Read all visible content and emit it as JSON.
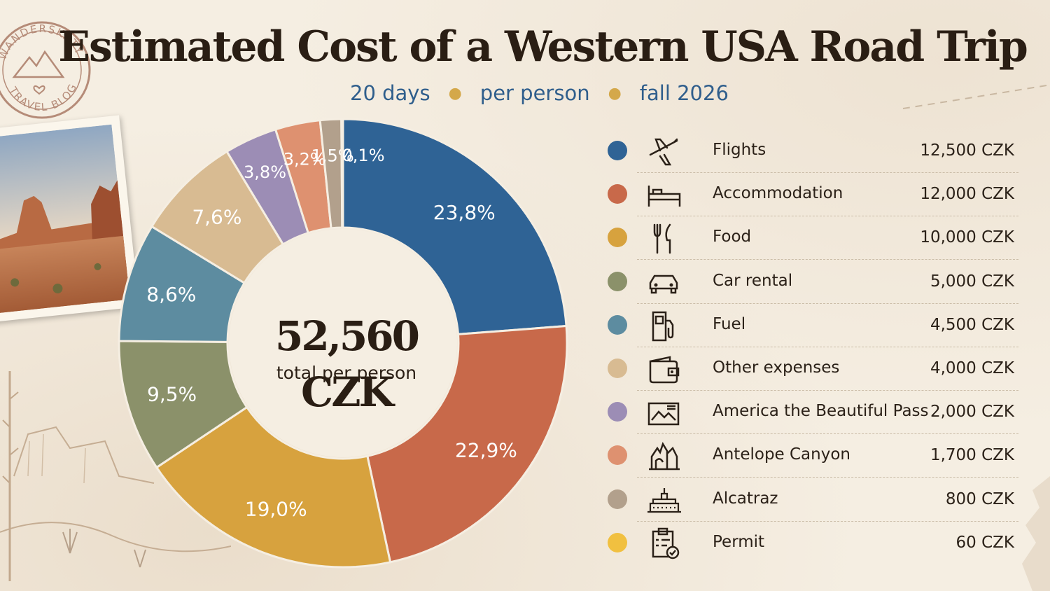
{
  "title": "Estimated Cost of a Western USA Road Trip",
  "subtitle": {
    "parts": [
      "20 days",
      "per person",
      "fall 2026"
    ]
  },
  "stamp": {
    "text": "WANDERSKATY TRAVEL BLOG"
  },
  "center": {
    "total": "52,560 CZK",
    "label": "total per person"
  },
  "colors": {
    "accent_blue": "#2f5e8c",
    "dot": "#d4a84a"
  },
  "chart_data": {
    "type": "pie",
    "donut": true,
    "title": "Estimated Cost of a Western USA Road Trip",
    "unit": "CZK",
    "total": 52560,
    "categories": [
      "Flights",
      "Accommodation",
      "Food",
      "Car rental",
      "Fuel",
      "Other expenses",
      "America the Beautiful Pass",
      "Antelope Canyon",
      "Alcatraz",
      "Permit"
    ],
    "values": [
      12500,
      12000,
      10000,
      5000,
      4500,
      4000,
      2000,
      1700,
      800,
      60
    ],
    "percent_labels": [
      "23,8%",
      "22,9%",
      "19,0%",
      "9,5%",
      "8,6%",
      "7,6%",
      "3,8%",
      "3,2%",
      "1,5%",
      "0,1%"
    ],
    "colors": [
      "#2f6395",
      "#c8694a",
      "#d7a23e",
      "#8b916a",
      "#5d8ca0",
      "#d8bb92",
      "#9c8db5",
      "#de9170",
      "#b2a08c",
      "#f1c040"
    ],
    "legend_position": "right"
  },
  "legend": [
    {
      "name": "Flights",
      "amount": "12,500 CZK",
      "icon": "airplane-icon"
    },
    {
      "name": "Accommodation",
      "amount": "12,000 CZK",
      "icon": "bed-icon"
    },
    {
      "name": "Food",
      "amount": "10,000 CZK",
      "icon": "fork-knife-icon"
    },
    {
      "name": "Car rental",
      "amount": "5,000 CZK",
      "icon": "car-icon"
    },
    {
      "name": "Fuel",
      "amount": "4,500 CZK",
      "icon": "fuel-pump-icon"
    },
    {
      "name": "Other expenses",
      "amount": "4,000 CZK",
      "icon": "wallet-icon"
    },
    {
      "name": "America the Beautiful Pass",
      "amount": "2,000 CZK",
      "icon": "park-pass-icon"
    },
    {
      "name": "Antelope Canyon",
      "amount": "1,700 CZK",
      "icon": "canyon-icon"
    },
    {
      "name": "Alcatraz",
      "amount": "800 CZK",
      "icon": "prison-building-icon"
    },
    {
      "name": "Permit",
      "amount": "60 CZK",
      "icon": "permit-clipboard-icon"
    }
  ]
}
